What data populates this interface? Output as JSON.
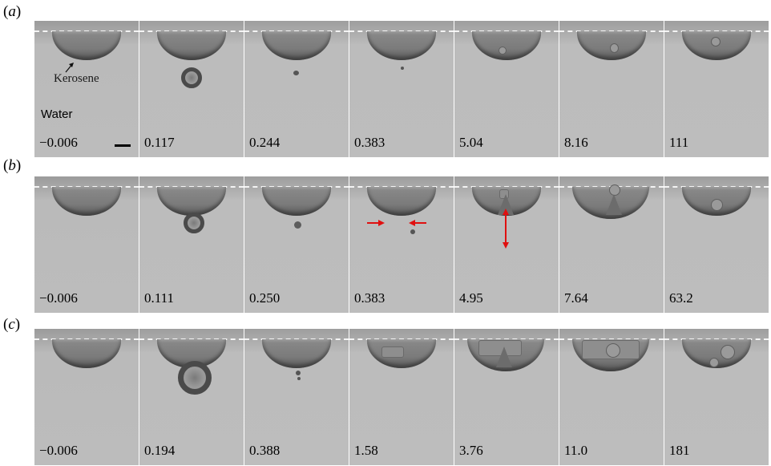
{
  "rows": [
    {
      "label": "a",
      "annotations": {
        "arrow_label": "Kerosene",
        "fluid_label": "Water"
      },
      "times": [
        "−0.006",
        "0.117",
        "0.244",
        "0.383",
        "5.04",
        "8.16",
        "111"
      ]
    },
    {
      "label": "b",
      "times": [
        "−0.006",
        "0.111",
        "0.250",
        "0.383",
        "4.95",
        "7.64",
        "63.2"
      ]
    },
    {
      "label": "c",
      "times": [
        "−0.006",
        "0.194",
        "0.388",
        "1.58",
        "3.76",
        "11.0",
        "181"
      ]
    }
  ],
  "colors": {
    "annotation_arrow": "#e01010",
    "background": "#bcbcbc",
    "dashed_line": "#f4f4f4"
  }
}
